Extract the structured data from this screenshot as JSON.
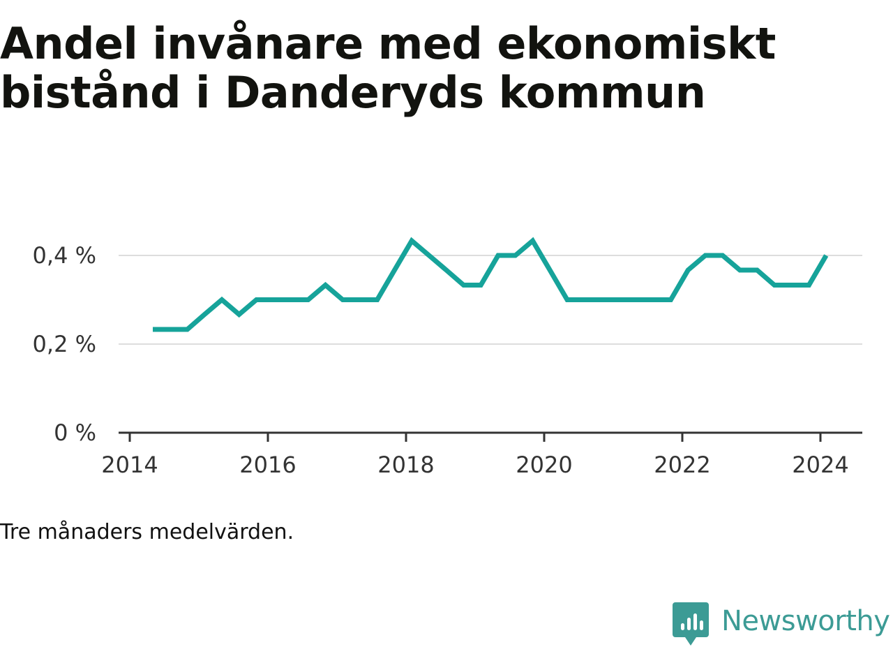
{
  "title": "Andel invånare med ekonomiskt bistånd i Danderyds kommun",
  "note": "Tre månaders medelvärden.",
  "brand": {
    "name": "Newsworthy",
    "icon": "bar-chart-speech-bubble-icon",
    "color": "#3c9b95"
  },
  "chart_data": {
    "type": "line",
    "title": "Andel invånare med ekonomiskt bistånd i Danderyds kommun",
    "xlabel": "",
    "ylabel": "",
    "x_ticks": [
      "2014",
      "2016",
      "2018",
      "2020",
      "2022",
      "2024"
    ],
    "y_ticks": [
      "0 %",
      "0,2 %",
      "0,4 %"
    ],
    "xlim": [
      2014,
      2024.5
    ],
    "ylim": [
      0,
      0.4
    ],
    "grid": true,
    "line_color": "#16a39a",
    "series": [
      {
        "x": [
          "2014-05",
          "2014-08",
          "2014-11",
          "2015-02",
          "2015-05",
          "2015-08",
          "2015-11",
          "2016-02",
          "2016-05",
          "2016-08",
          "2016-11",
          "2017-02",
          "2017-05",
          "2017-08",
          "2017-11",
          "2018-02",
          "2018-05",
          "2018-08",
          "2018-11",
          "2019-02",
          "2019-05",
          "2019-08",
          "2019-11",
          "2020-02",
          "2020-05",
          "2020-08",
          "2020-11",
          "2021-02",
          "2021-05",
          "2021-08",
          "2021-11",
          "2022-02",
          "2022-05",
          "2022-08",
          "2022-11",
          "2023-02",
          "2023-05",
          "2023-08",
          "2023-11",
          "2024-02"
        ],
        "values": [
          0.233,
          0.233,
          0.233,
          0.267,
          0.3,
          0.267,
          0.3,
          0.3,
          0.3,
          0.3,
          0.333,
          0.3,
          0.3,
          0.3,
          0.367,
          0.433,
          0.4,
          0.367,
          0.333,
          0.333,
          0.4,
          0.4,
          0.433,
          0.367,
          0.3,
          0.3,
          0.3,
          0.3,
          0.3,
          0.3,
          0.3,
          0.367,
          0.4,
          0.4,
          0.367,
          0.367,
          0.333,
          0.333,
          0.333,
          0.4
        ]
      }
    ]
  }
}
